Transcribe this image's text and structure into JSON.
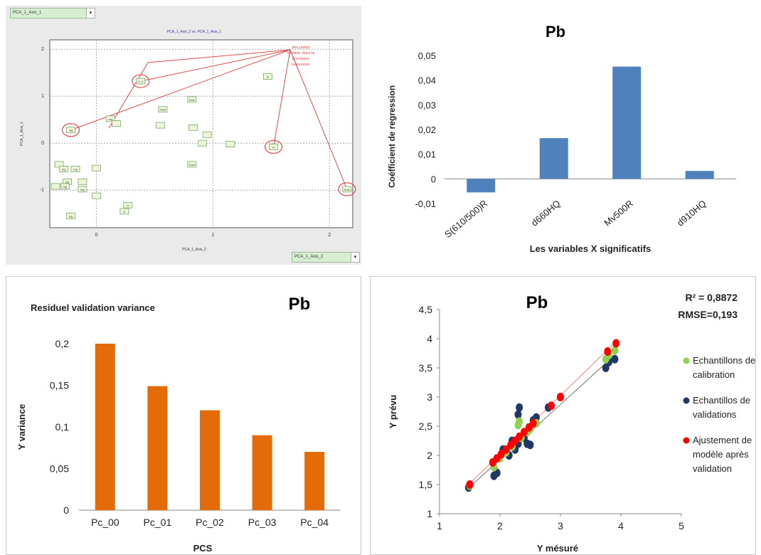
{
  "pca_panel": {
    "dropdown_top": "PCA_1_Axis_1",
    "dropdown_bottom": "PCA_1_Axis_2",
    "annotation": [
      "des points",
      "eliminer dans la",
      "prochaine",
      "regression"
    ]
  },
  "chart_data": [
    {
      "type": "scatter",
      "title": "PCA_1_Axis_2 vs. PCA_1_Axis_1",
      "xlabel": "PCA_1_Axis_2",
      "ylabel": "PCA_1_Axis_1",
      "xlim": [
        -0.4,
        2.2
      ],
      "ylim": [
        -1.8,
        2.2
      ],
      "xticks": [
        "0",
        "1",
        "2"
      ],
      "yticks": [
        "2",
        "1",
        "0",
        "-1"
      ],
      "grid": true,
      "points": [
        {
          "x": 0.38,
          "y": 1.32,
          "label": "C_C",
          "circled": true
        },
        {
          "x": -0.22,
          "y": 0.28,
          "label": "mg",
          "circled": true
        },
        {
          "x": 1.52,
          "y": -0.08,
          "label": "G",
          "circled": true
        },
        {
          "x": 2.15,
          "y": -0.98,
          "label": "Gum",
          "circled": true
        },
        {
          "x": 1.47,
          "y": 1.42,
          "label": "m",
          "circled": false
        },
        {
          "x": 0.82,
          "y": 0.93,
          "label": "Gum",
          "circled": false
        },
        {
          "x": 0.57,
          "y": 0.72,
          "label": "Gum",
          "circled": false
        },
        {
          "x": 0.12,
          "y": 0.52,
          "label": "mg",
          "circled": false
        },
        {
          "x": 0.17,
          "y": 0.42,
          "label": "",
          "circled": false
        },
        {
          "x": 0.55,
          "y": 0.38,
          "label": "",
          "circled": false
        },
        {
          "x": 0.83,
          "y": 0.33,
          "label": "",
          "circled": false
        },
        {
          "x": 0.95,
          "y": 0.18,
          "label": "",
          "circled": false
        },
        {
          "x": 0.91,
          "y": 0.0,
          "label": "",
          "circled": false
        },
        {
          "x": 1.15,
          "y": -0.02,
          "label": "",
          "circled": false
        },
        {
          "x": 0.82,
          "y": -0.45,
          "label": "Gum",
          "circled": false
        },
        {
          "x": -0.32,
          "y": -0.45,
          "label": "",
          "circled": false
        },
        {
          "x": -0.28,
          "y": -0.55,
          "label": "mg",
          "circled": false
        },
        {
          "x": -0.18,
          "y": -0.55,
          "label": "mg",
          "circled": false
        },
        {
          "x": 0.0,
          "y": -0.53,
          "label": "",
          "circled": false
        },
        {
          "x": -0.25,
          "y": -0.82,
          "label": "mg",
          "circled": false
        },
        {
          "x": -0.12,
          "y": -0.82,
          "label": "",
          "circled": false
        },
        {
          "x": -0.35,
          "y": -0.92,
          "label": "",
          "circled": false
        },
        {
          "x": -0.27,
          "y": -0.92,
          "label": "mg",
          "circled": false
        },
        {
          "x": -0.12,
          "y": -0.98,
          "label": "mg",
          "circled": false
        },
        {
          "x": 0.0,
          "y": -1.12,
          "label": "",
          "circled": false
        },
        {
          "x": 0.27,
          "y": -1.32,
          "label": "G",
          "circled": false
        },
        {
          "x": 0.24,
          "y": -1.45,
          "label": "G",
          "circled": false
        },
        {
          "x": -0.22,
          "y": -1.55,
          "label": "mg",
          "circled": false
        }
      ]
    },
    {
      "type": "bar",
      "title": "Pb",
      "xlabel": "Les variables X significatifs",
      "ylabel": "Coéfficient de regression",
      "categories": [
        "S(610/500)R",
        "d660HQ",
        "Mv500R",
        "d910HQ"
      ],
      "values": [
        -0.0055,
        0.0165,
        0.0455,
        0.0032
      ],
      "ylim": [
        -0.01,
        0.05
      ],
      "yticks": [
        "0,05",
        "0,04",
        "0,03",
        "0,02",
        "0,01",
        "0",
        "-0,01"
      ],
      "color": "#4f81bd"
    },
    {
      "type": "bar",
      "title": "Residuel validation variance",
      "label": "Pb",
      "xlabel": "PCS",
      "ylabel": "Y variance",
      "categories": [
        "Pc_00",
        "Pc_01",
        "Pc_02",
        "Pc_03",
        "Pc_04"
      ],
      "values": [
        0.2,
        0.149,
        0.12,
        0.09,
        0.07
      ],
      "ylim": [
        0,
        0.2
      ],
      "yticks": [
        "0,2",
        "0,15",
        "0,1",
        "0,05",
        "0"
      ],
      "color": "#e36c09"
    },
    {
      "type": "scatter",
      "title": "Pb",
      "stats": [
        "R² = 0,8872",
        "RMSE=0,193"
      ],
      "xlabel": "Y mésuré",
      "ylabel": "Y prévu",
      "xlim": [
        1,
        5
      ],
      "ylim": [
        1,
        4.5
      ],
      "xticks": [
        "1",
        "2",
        "3",
        "4",
        "5"
      ],
      "yticks": [
        "4,5",
        "4",
        "3,5",
        "3",
        "2,5",
        "2",
        "1,5",
        "1"
      ],
      "series": [
        {
          "name": "Echantillons de calibration",
          "color": "#92d050",
          "points": [
            [
              1.5,
              1.48
            ],
            [
              1.9,
              1.8
            ],
            [
              2.0,
              1.95
            ],
            [
              2.1,
              2.05
            ],
            [
              2.2,
              2.15
            ],
            [
              2.3,
              2.52
            ],
            [
              2.32,
              2.58
            ],
            [
              2.35,
              2.3
            ],
            [
              2.45,
              2.4
            ],
            [
              2.5,
              2.45
            ],
            [
              2.6,
              2.55
            ],
            [
              3.8,
              3.72
            ],
            [
              3.9,
              3.8
            ],
            [
              3.75,
              3.65
            ]
          ]
        },
        {
          "name": "Echantillos de validations",
          "color": "#1f3864",
          "points": [
            [
              1.48,
              1.45
            ],
            [
              1.9,
              1.65
            ],
            [
              1.95,
              1.7
            ],
            [
              2.05,
              2.1
            ],
            [
              2.15,
              2.0
            ],
            [
              2.2,
              2.25
            ],
            [
              2.25,
              2.1
            ],
            [
              2.3,
              2.2
            ],
            [
              2.3,
              2.7
            ],
            [
              2.32,
              2.82
            ],
            [
              2.4,
              2.3
            ],
            [
              2.45,
              2.2
            ],
            [
              2.5,
              2.18
            ],
            [
              2.55,
              2.6
            ],
            [
              2.6,
              2.65
            ],
            [
              2.8,
              2.82
            ],
            [
              3.0,
              3.0
            ],
            [
              3.75,
              3.5
            ],
            [
              3.8,
              3.6
            ],
            [
              3.9,
              3.65
            ]
          ]
        },
        {
          "name": "Ajustement de modèle après validation",
          "color": "#ff0000",
          "points": [
            [
              1.5,
              1.5
            ],
            [
              1.88,
              1.88
            ],
            [
              1.95,
              1.95
            ],
            [
              2.02,
              2.02
            ],
            [
              2.1,
              2.1
            ],
            [
              2.18,
              2.18
            ],
            [
              2.25,
              2.25
            ],
            [
              2.32,
              2.32
            ],
            [
              2.4,
              2.4
            ],
            [
              2.48,
              2.48
            ],
            [
              2.55,
              2.55
            ],
            [
              2.85,
              2.85
            ],
            [
              3.0,
              3.0
            ],
            [
              3.78,
              3.78
            ],
            [
              3.92,
              3.92
            ]
          ]
        }
      ]
    }
  ]
}
